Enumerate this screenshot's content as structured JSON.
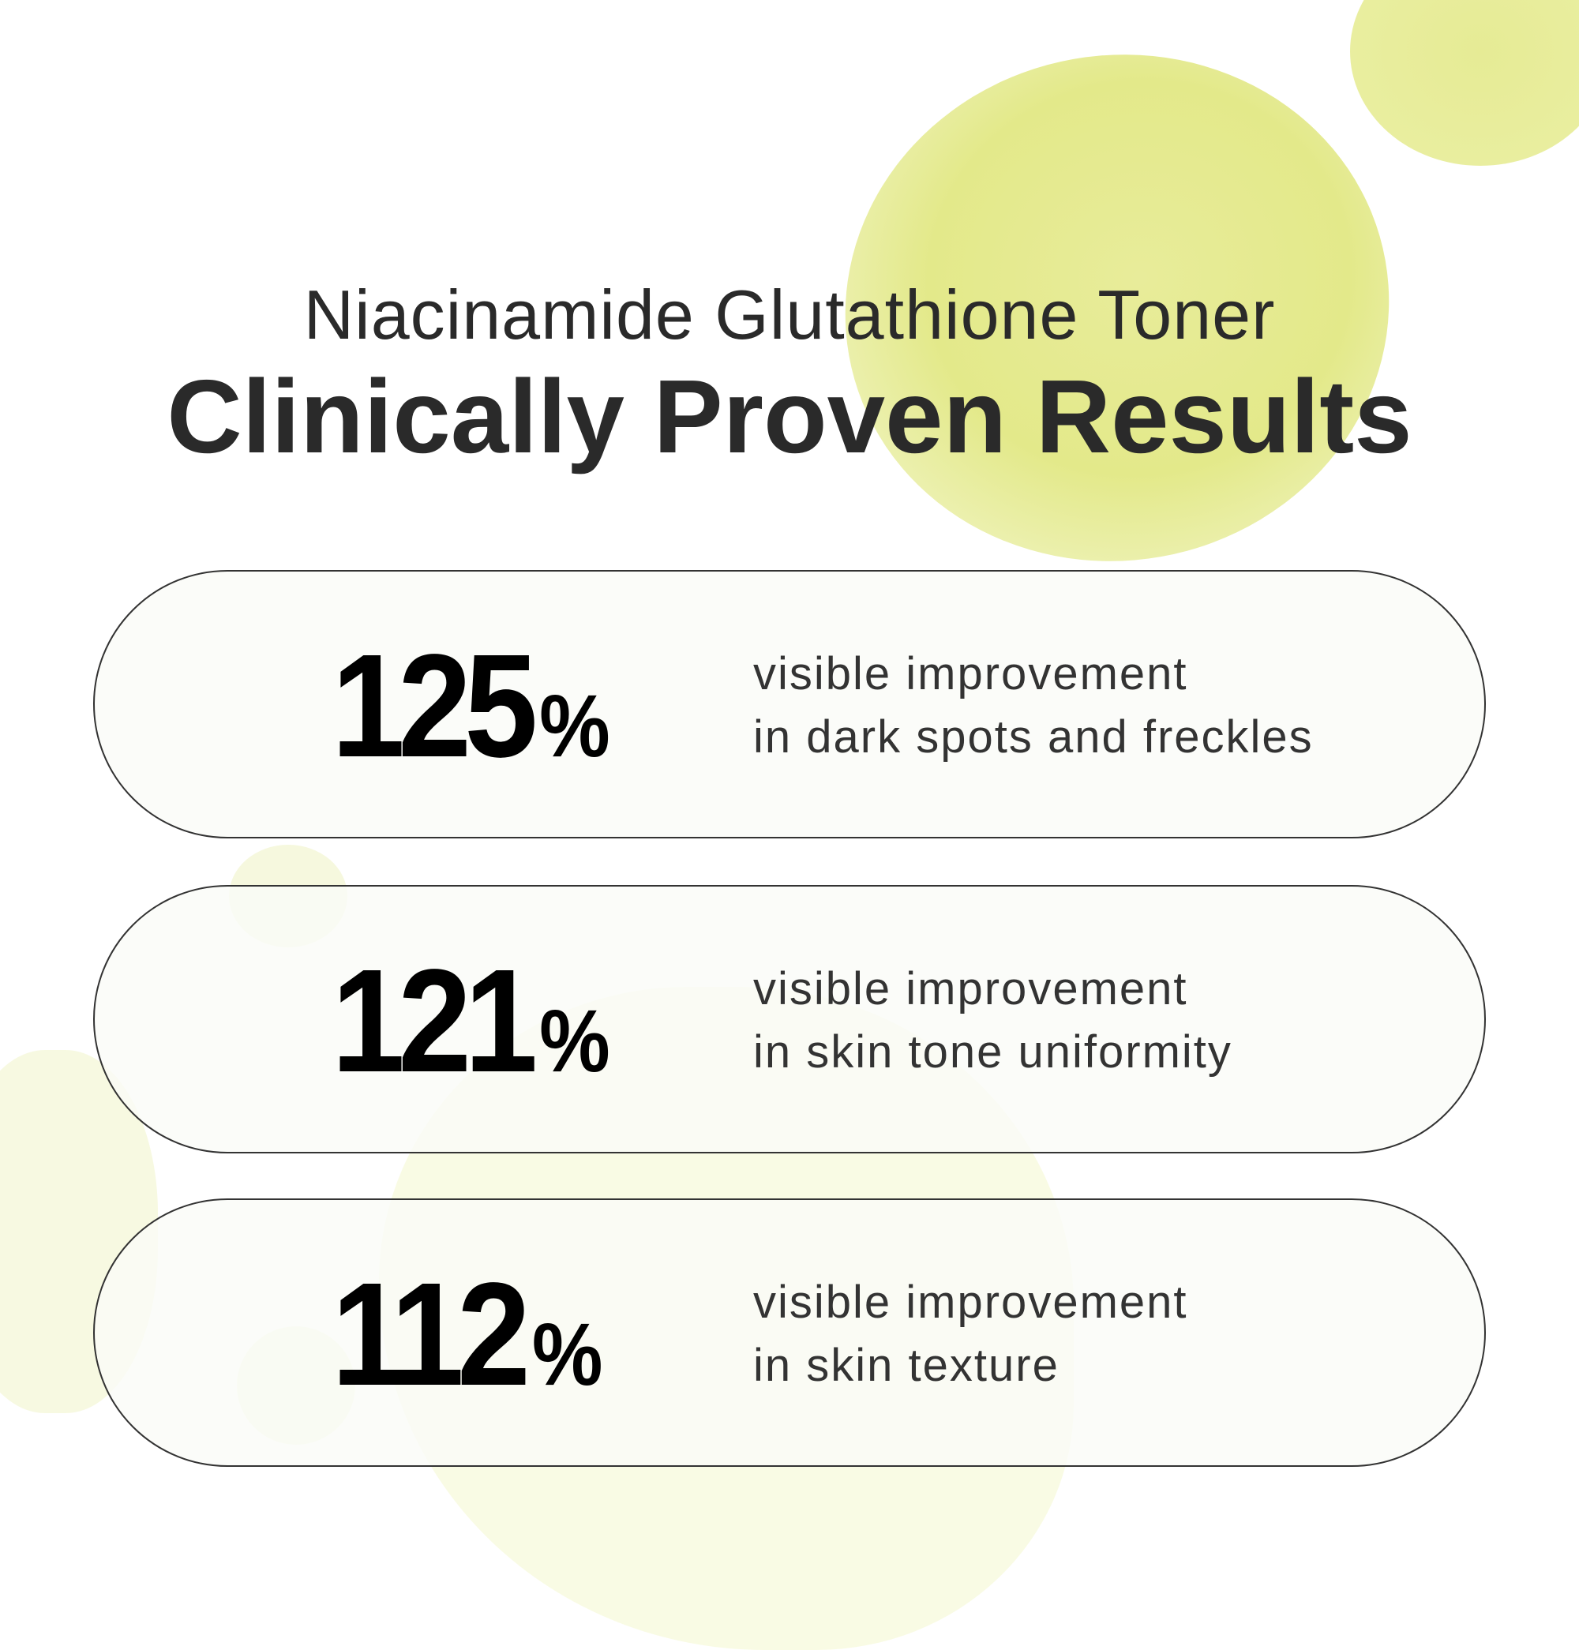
{
  "header": {
    "subtitle": "Niacinamide Glutathione Toner",
    "title": "Clinically Proven Results"
  },
  "results": [
    {
      "value": "125",
      "unit": "%",
      "line1": "visible improvement",
      "line2": "in dark spots and freckles"
    },
    {
      "value": "121",
      "unit": "%",
      "line1": "visible improvement",
      "line2": "in skin tone uniformity"
    },
    {
      "value": "112",
      "unit": "%",
      "line1": "visible improvement",
      "line2": "in skin texture"
    }
  ],
  "colors": {
    "accent": "#e3e98a",
    "text": "#222222",
    "pill_border": "#333333"
  }
}
